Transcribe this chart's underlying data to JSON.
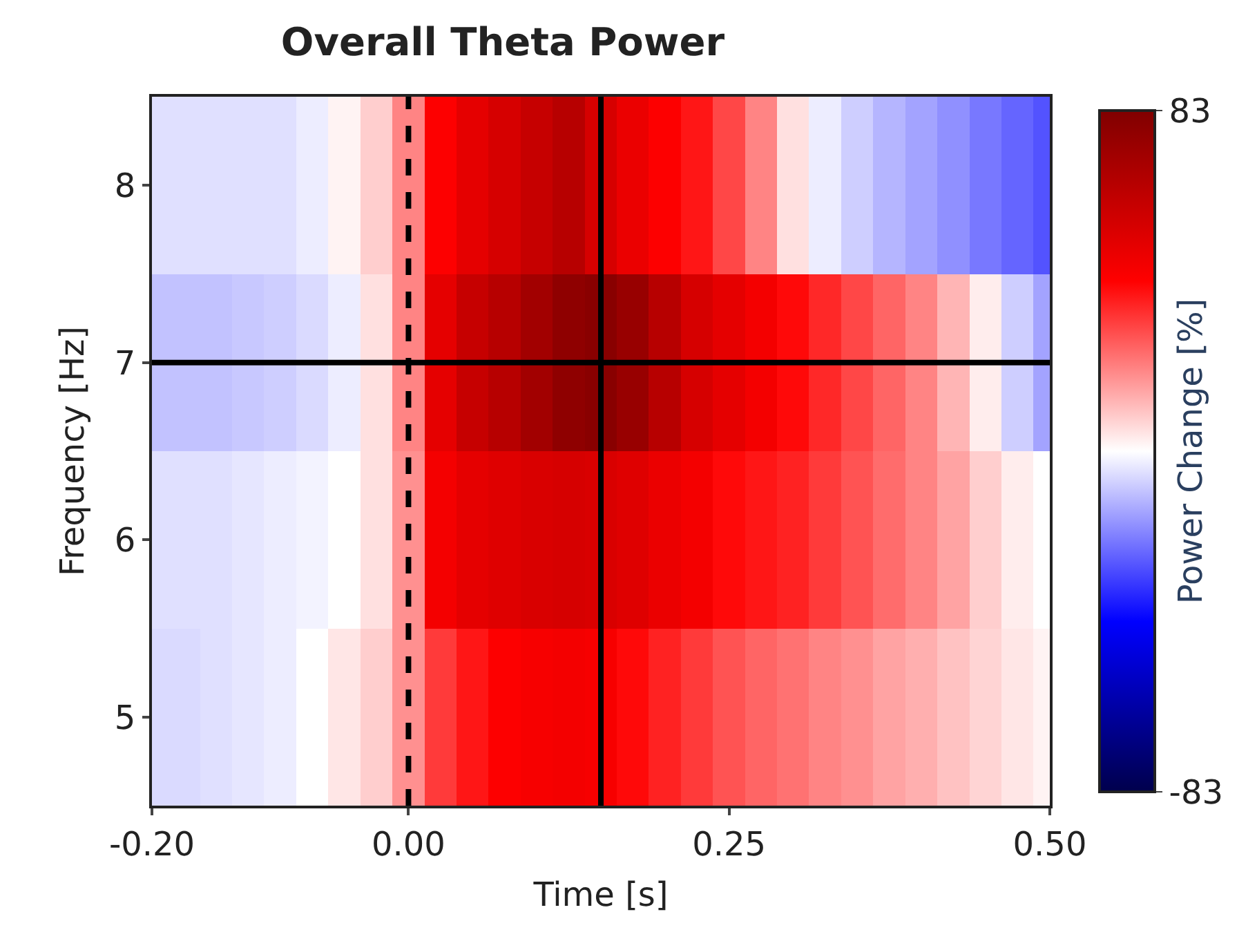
{
  "chart_data": {
    "type": "heatmap",
    "title": "Overall Theta Power",
    "xlabel": "Time [s]",
    "ylabel": "Frequency [Hz]",
    "clabel": "Power Change [%]",
    "x": [
      -0.2,
      -0.175,
      -0.15,
      -0.125,
      -0.1,
      -0.075,
      -0.05,
      -0.025,
      0,
      0.025,
      0.05,
      0.075,
      0.1,
      0.125,
      0.15,
      0.175,
      0.2,
      0.225,
      0.25,
      0.275,
      0.3,
      0.325,
      0.35,
      0.375,
      0.4,
      0.425,
      0.45,
      0.475,
      0.5
    ],
    "cells": [
      [
        -5,
        -5,
        -5,
        -5,
        -5,
        -3,
        2,
        8,
        20,
        42,
        50,
        55,
        60,
        65,
        55,
        48,
        42,
        38,
        30,
        20,
        5,
        -3,
        -8,
        -12,
        -15,
        -18,
        -22,
        -25,
        -28
      ],
      [
        -10,
        -10,
        -10,
        -9,
        -8,
        -6,
        -3,
        5,
        20,
        50,
        60,
        65,
        72,
        78,
        80,
        75,
        65,
        55,
        50,
        45,
        40,
        35,
        30,
        25,
        20,
        12,
        3,
        -8,
        -15
      ],
      [
        -5,
        -5,
        -5,
        -4,
        -3,
        -2,
        0,
        5,
        18,
        45,
        50,
        52,
        54,
        55,
        54,
        52,
        48,
        45,
        40,
        38,
        36,
        32,
        28,
        24,
        20,
        15,
        8,
        3,
        0
      ],
      [
        -6,
        -6,
        -5,
        -4,
        -3,
        0,
        4,
        8,
        18,
        32,
        38,
        42,
        44,
        45,
        44,
        40,
        36,
        32,
        28,
        25,
        23,
        20,
        18,
        15,
        13,
        10,
        7,
        4,
        2
      ]
    ],
    "xlim": [
      -0.2,
      0.5
    ],
    "xticks": [
      {
        "value": -0.2,
        "label": "-0.20"
      },
      {
        "value": 0,
        "label": "0.00"
      },
      {
        "value": 0.25,
        "label": "0.25"
      },
      {
        "value": 0.5,
        "label": "0.50"
      }
    ],
    "ylim": [
      4.5,
      8.5
    ],
    "yticks": [
      5,
      6,
      7,
      8
    ],
    "clim": [
      -83,
      83
    ],
    "cticks": [
      -83,
      83
    ],
    "ref_lines": [
      {
        "axis": "x",
        "value": 0,
        "line_style": "dashed",
        "color": "#000000"
      },
      {
        "axis": "x",
        "value": 0.15,
        "line_style": "solid",
        "color": "#000000"
      },
      {
        "axis": "y",
        "value": 7,
        "line_style": "solid",
        "color": "#000000"
      }
    ]
  }
}
